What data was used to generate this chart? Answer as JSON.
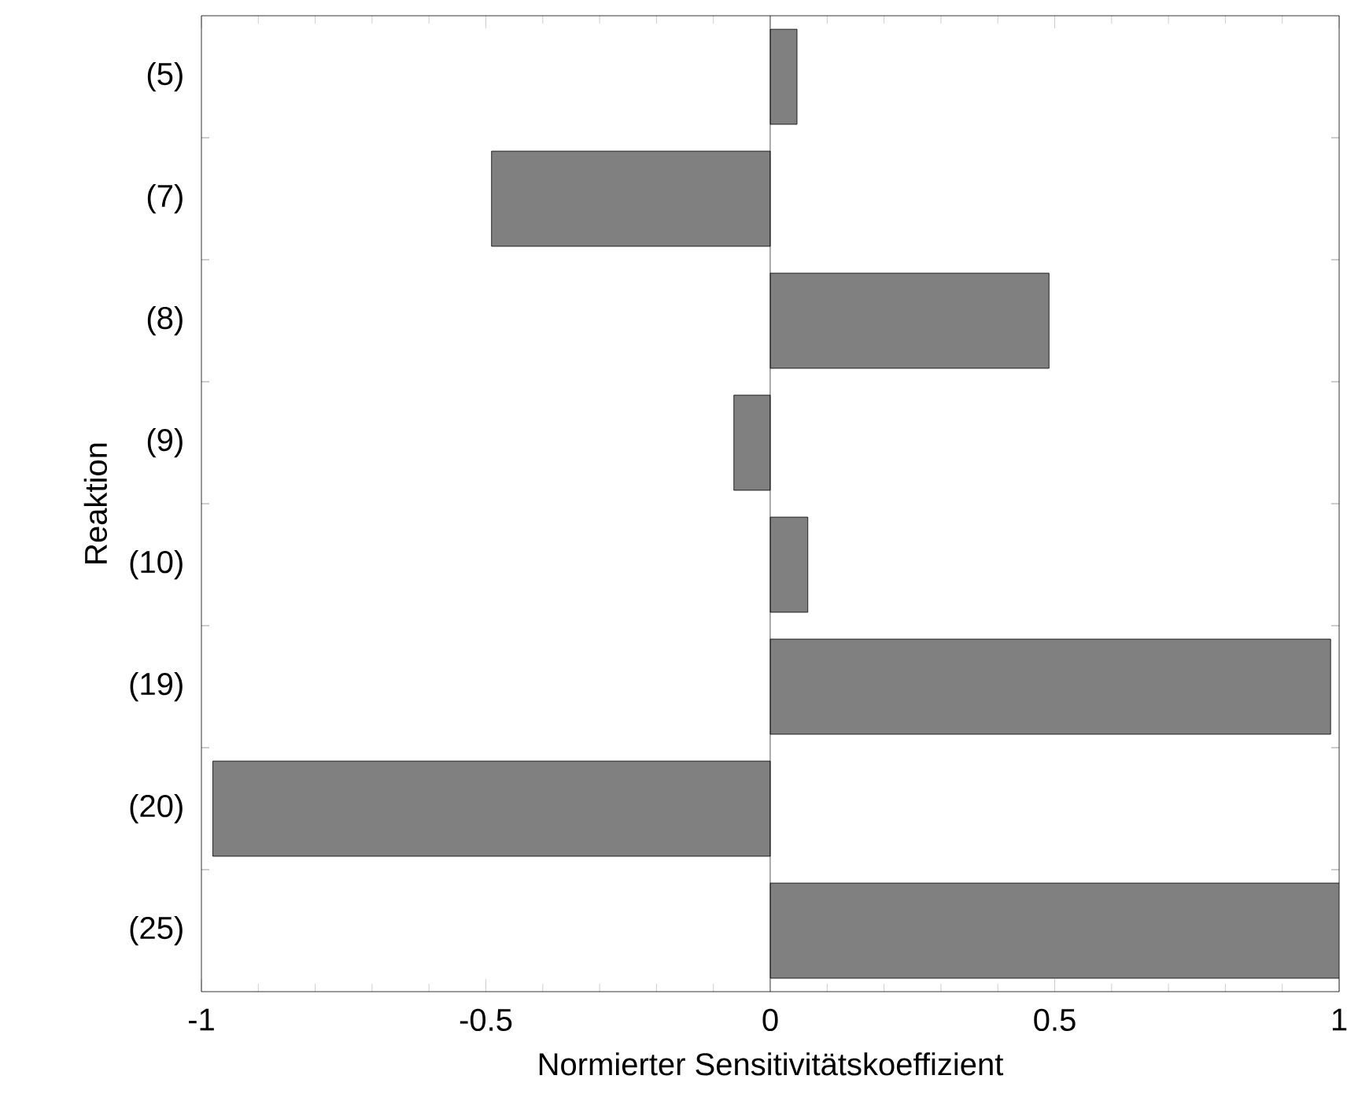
{
  "chart_data": {
    "type": "bar",
    "orientation": "horizontal",
    "xlabel": "Normierter Sensitivitätskoeffizient",
    "ylabel": "Reaktion",
    "categories": [
      "(5)",
      "(7)",
      "(8)",
      "(9)",
      "(10)",
      "(19)",
      "(20)",
      "(25)"
    ],
    "values": [
      0.047,
      -0.49,
      0.49,
      -0.064,
      0.066,
      0.985,
      -0.98,
      1.0
    ],
    "color": "#808080",
    "xlim": [
      -1,
      1
    ],
    "xticks": [
      -1,
      -0.5,
      0,
      0.5,
      1
    ],
    "ref_lines": [
      {
        "axis": "x",
        "value": 0,
        "color": "#000000"
      }
    ]
  }
}
